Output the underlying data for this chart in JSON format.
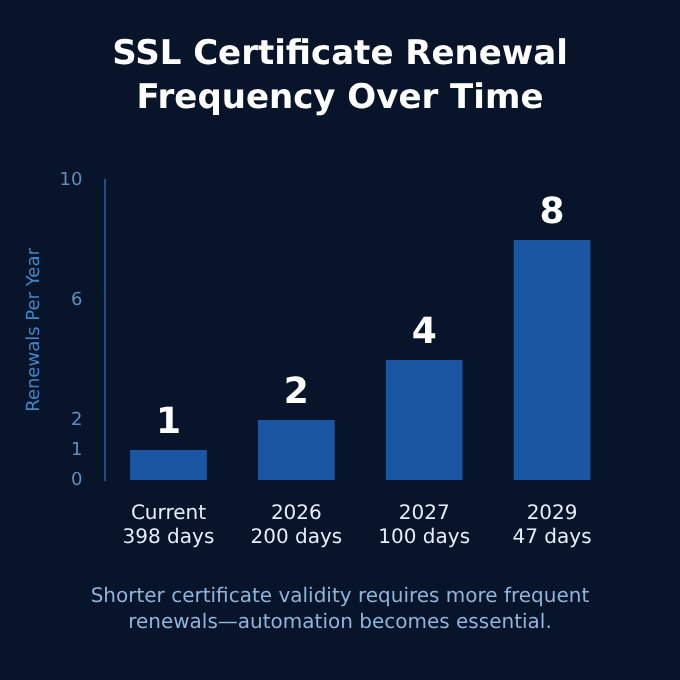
{
  "chart_data": {
    "type": "bar",
    "title": "SSL Certificate Renewal Frequency Over Time",
    "ylabel": "Renewals Per Year",
    "categories": [
      "Current\n398 days",
      "2026\n200 days",
      "2027\n100 days",
      "2029\n47 days"
    ],
    "values": [
      1,
      2,
      4,
      8
    ],
    "color": "#1b56a3",
    "ylim": [
      0,
      10
    ],
    "yticks": [
      0,
      1,
      2,
      6,
      10
    ],
    "grid": false,
    "data_labels": true,
    "annotations": [
      "Shorter certificate validity requires more frequent renewals—automation becomes essential."
    ]
  }
}
